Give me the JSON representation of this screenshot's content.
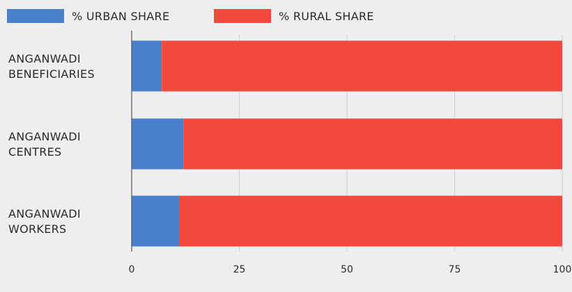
{
  "chart_data": {
    "type": "bar",
    "orientation": "horizontal",
    "stacked": true,
    "categories": [
      [
        "ANGANWADI",
        "BENEFICIARIES"
      ],
      [
        "ANGANWADI",
        "CENTRES"
      ],
      [
        "ANGANWADI",
        "WORKERS"
      ]
    ],
    "series": [
      {
        "name": "% URBAN SHARE",
        "color": "#4a7fcb",
        "values": [
          7,
          12,
          11
        ]
      },
      {
        "name": "% RURAL SHARE",
        "color": "#ef4a3c",
        "values": [
          93,
          88,
          89
        ]
      }
    ],
    "xlim": [
      0,
      100
    ],
    "xticks": [
      "0",
      "25",
      "50",
      "75",
      "100"
    ],
    "grid": true,
    "legend_position": "top-left",
    "title": "",
    "xlabel": "",
    "ylabel": ""
  }
}
